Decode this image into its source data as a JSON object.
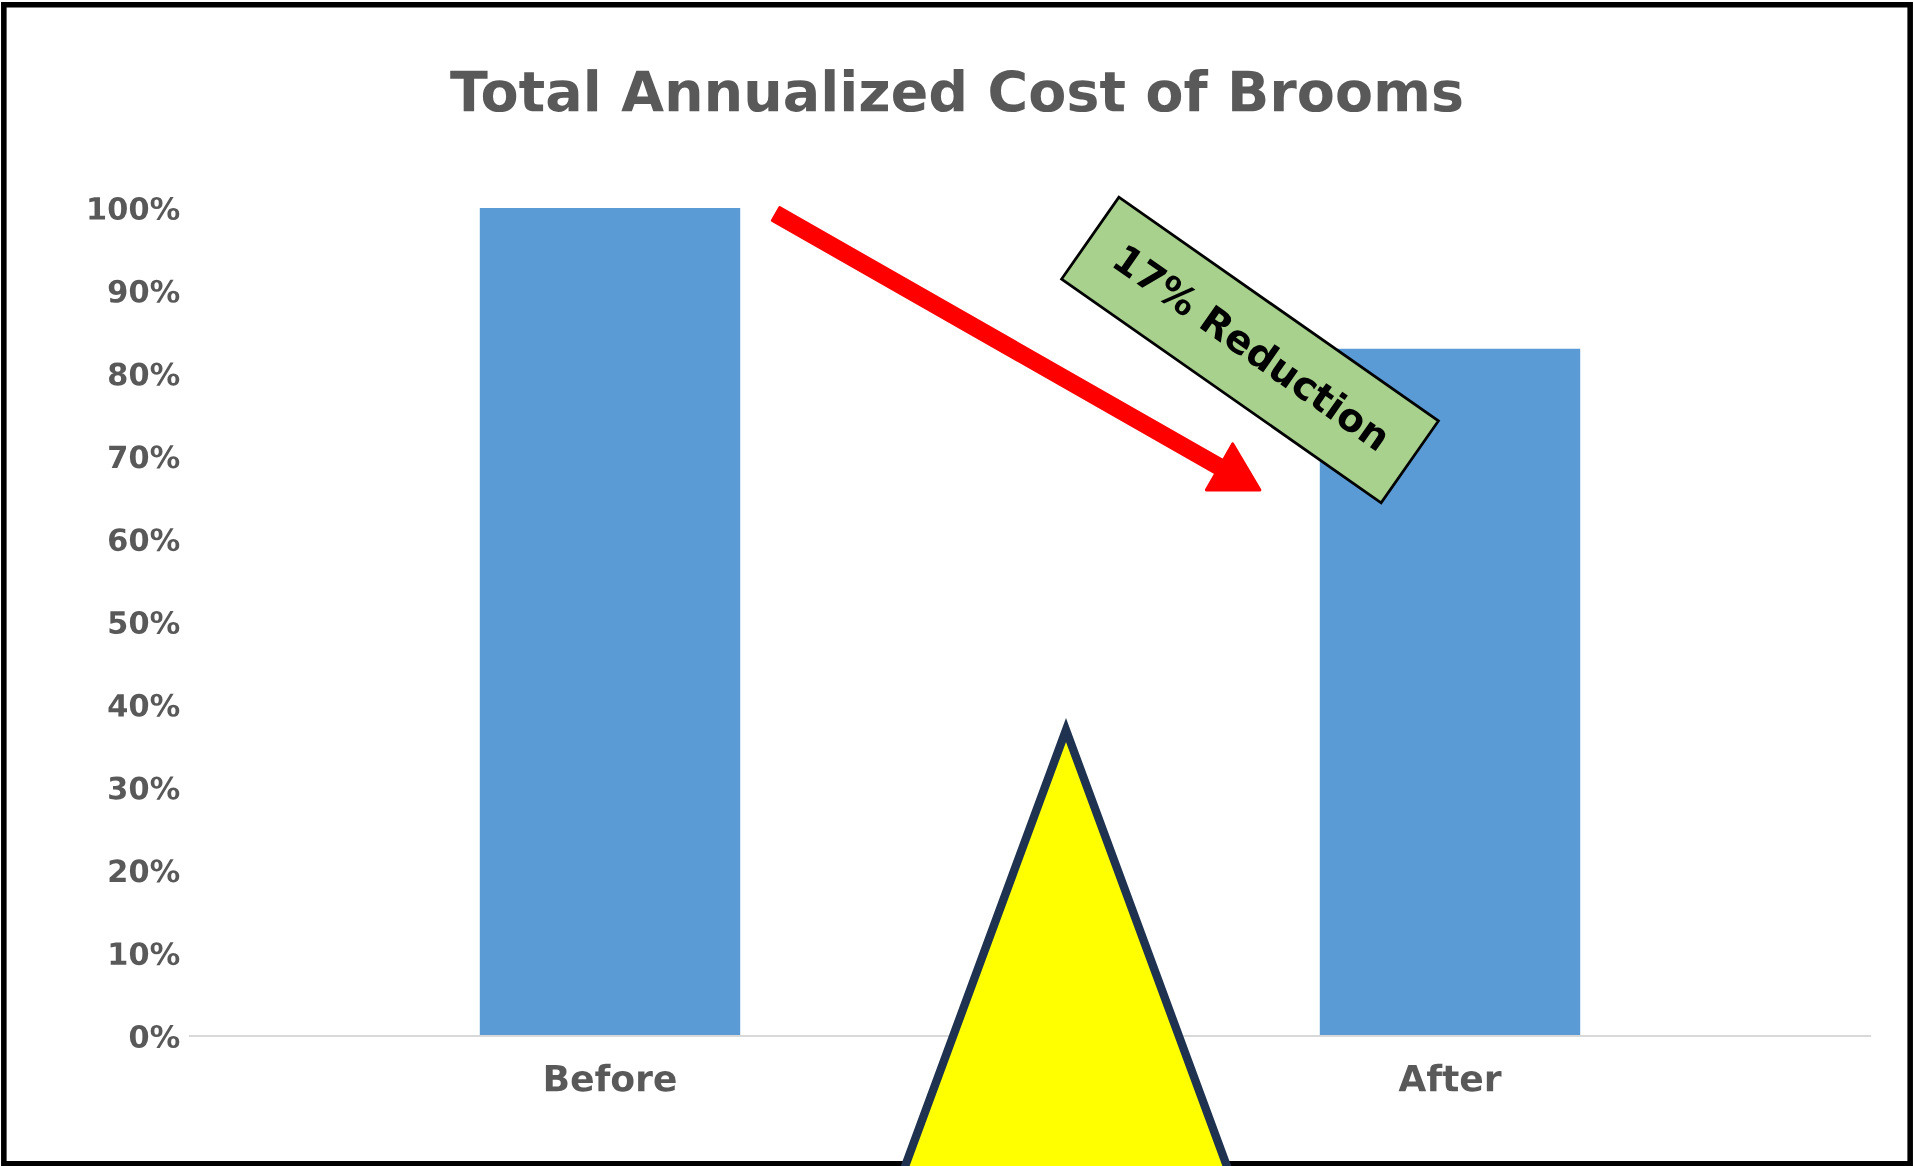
{
  "chart_data": {
    "type": "bar",
    "title": "Total Annualized Cost of Brooms",
    "categories": [
      "Before",
      "After"
    ],
    "values": [
      100,
      83
    ],
    "color": "#5b9bd5",
    "ylim": [
      0,
      100
    ],
    "yticks": [
      {
        "value": 0,
        "label": "0%"
      },
      {
        "value": 10,
        "label": "10%"
      },
      {
        "value": 20,
        "label": "20%"
      },
      {
        "value": 30,
        "label": "30%"
      },
      {
        "value": 40,
        "label": "40%"
      },
      {
        "value": 50,
        "label": "50%"
      },
      {
        "value": 60,
        "label": "60%"
      },
      {
        "value": 70,
        "label": "70%"
      },
      {
        "value": 80,
        "label": "80%"
      },
      {
        "value": 90,
        "label": "90%"
      },
      {
        "value": 100,
        "label": "100%"
      }
    ],
    "grid": false,
    "annotations": [
      "17% Reduction"
    ]
  }
}
